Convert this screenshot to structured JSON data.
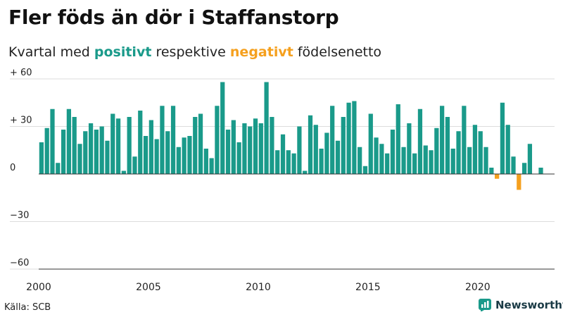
{
  "title": "Fler föds än dör i Staffanstorp",
  "subtitle": {
    "before": "Kvartal med ",
    "positive": "positivt",
    "middle": " respektive ",
    "negative": "negativt",
    "after": " födelsenetto"
  },
  "footer": {
    "source": "Källa: SCB",
    "brand": "Newsworthy"
  },
  "colors": {
    "positive": "#1a9a8a",
    "negative": "#f5a01e",
    "grid": "#dcdcdc",
    "zero": "#333333"
  },
  "chart_data": {
    "type": "bar",
    "title": "Fler föds än dör i Staffanstorp",
    "xlabel": "",
    "ylabel": "",
    "ylim": [
      -60,
      60
    ],
    "yticks": [
      60,
      30,
      0,
      -30,
      -60
    ],
    "ytick_labels": [
      "+ 60",
      "+ 30",
      "0",
      "−30",
      "−60"
    ],
    "x_range": [
      2000,
      2023.5
    ],
    "xticks": [
      2000,
      2005,
      2010,
      2015,
      2020
    ],
    "xtick_labels": [
      "2000",
      "2005",
      "2010",
      "2015",
      "2020"
    ],
    "start_quarter": "2000 Q1",
    "values": [
      20,
      29,
      41,
      7,
      28,
      41,
      36,
      19,
      27,
      32,
      28,
      30,
      21,
      38,
      35,
      2,
      36,
      11,
      40,
      24,
      34,
      22,
      43,
      27,
      43,
      17,
      23,
      24,
      36,
      38,
      16,
      10,
      43,
      58,
      28,
      34,
      20,
      32,
      30,
      35,
      32,
      58,
      36,
      15,
      25,
      15,
      13,
      30,
      2,
      37,
      31,
      16,
      26,
      43,
      21,
      36,
      45,
      46,
      17,
      5,
      38,
      23,
      19,
      13,
      28,
      44,
      17,
      32,
      13,
      41,
      18,
      15,
      29,
      43,
      36,
      16,
      27,
      43,
      17,
      31,
      27,
      17,
      4,
      -3,
      45,
      31,
      11,
      -10,
      7,
      19,
      0,
      4
    ]
  }
}
